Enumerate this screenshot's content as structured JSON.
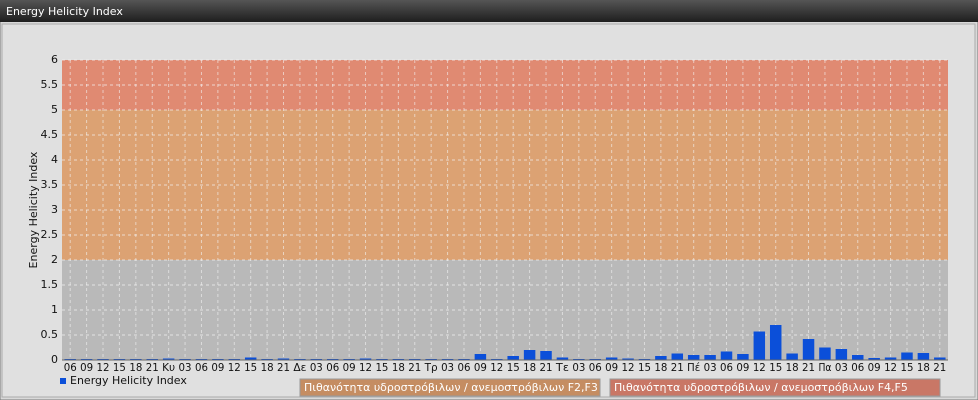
{
  "chart_data": {
    "type": "bar",
    "title": "Energy Helicity Index",
    "ylabel": "Energy Helicity Index",
    "categories": [
      "06",
      "09",
      "12",
      "15",
      "18",
      "21",
      "Κυ",
      "03",
      "06",
      "09",
      "12",
      "15",
      "18",
      "21",
      "Δε",
      "03",
      "06",
      "09",
      "12",
      "15",
      "18",
      "21",
      "Τρ",
      "03",
      "06",
      "09",
      "12",
      "15",
      "18",
      "21",
      "Τε",
      "03",
      "06",
      "09",
      "12",
      "15",
      "18",
      "21",
      "Πέ",
      "03",
      "06",
      "09",
      "12",
      "15",
      "18",
      "21",
      "Πα",
      "03",
      "06",
      "09",
      "12",
      "15",
      "18",
      "21"
    ],
    "series": [
      {
        "name": "Energy Helicity Index",
        "color": "#0b4fd9",
        "values": [
          0.02,
          0.02,
          0.02,
          0.02,
          0.02,
          0.02,
          0.03,
          0.02,
          0.02,
          0.02,
          0.02,
          0.05,
          0.02,
          0.03,
          0.02,
          0.02,
          0.02,
          0.02,
          0.03,
          0.02,
          0.02,
          0.02,
          0.02,
          0.02,
          0.02,
          0.12,
          0.02,
          0.08,
          0.2,
          0.18,
          0.05,
          0.02,
          0.02,
          0.05,
          0.03,
          0.02,
          0.08,
          0.13,
          0.1,
          0.1,
          0.17,
          0.12,
          0.57,
          0.7,
          0.13,
          0.42,
          0.25,
          0.22,
          0.1,
          0.04,
          0.05,
          0.15,
          0.14,
          0.05
        ]
      }
    ],
    "ylim": [
      0,
      6
    ],
    "yticks": [
      0,
      0.5,
      1,
      1.5,
      2,
      2.5,
      3,
      3.5,
      4,
      4.5,
      5,
      5.5,
      6
    ],
    "grid": true,
    "bands": [
      {
        "from": 0,
        "to": 2,
        "color": "#b9b9b9"
      },
      {
        "from": 2,
        "to": 5,
        "color": "#dca273",
        "label": "Πιθανότητα υδροστρόβιλων / ανεμοστρόβιλων F2,F3",
        "label_color": "#c58d62"
      },
      {
        "from": 5,
        "to": 6,
        "color": "#e08a72",
        "label": "Πιθανότητα υδροστρόβιλων / ανεμοστρόβιλων F4,F5",
        "label_color": "#c97766"
      }
    ]
  }
}
